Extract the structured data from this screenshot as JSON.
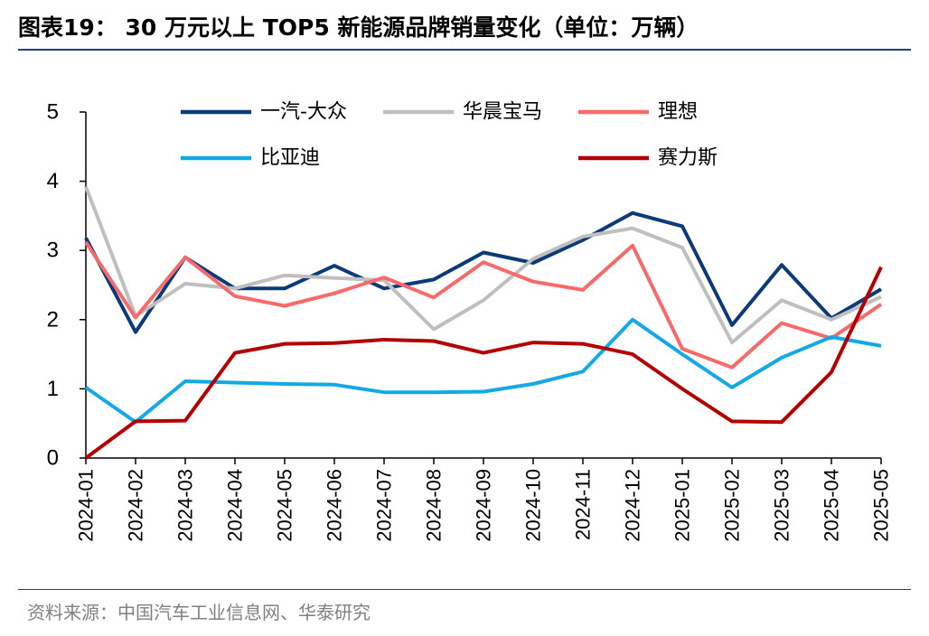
{
  "header": {
    "title": "图表19： 30 万元以上 TOP5 新能源品牌销量变化（单位：万辆）"
  },
  "footer": {
    "source": "资料来源：中国汽车工业信息网、华泰研究"
  },
  "chart_data": {
    "type": "line",
    "title": "30 万元以上 TOP5 新能源品牌销量变化（单位：万辆）",
    "xlabel": "",
    "ylabel": "",
    "ylim": [
      0,
      5
    ],
    "yticks": [
      "0",
      "1",
      "2",
      "3",
      "4",
      "5"
    ],
    "grid": false,
    "legend_position": "top",
    "categories": [
      "2024-01",
      "2024-02",
      "2024-03",
      "2024-04",
      "2024-05",
      "2024-06",
      "2024-07",
      "2024-08",
      "2024-09",
      "2024-10",
      "2024-11",
      "2024-12",
      "2025-01",
      "2025-02",
      "2025-03",
      "2025-04",
      "2025-05"
    ],
    "series": [
      {
        "name": "一汽-大众",
        "color": "#0B3A7A",
        "values": [
          3.18,
          1.82,
          2.9,
          2.45,
          2.45,
          2.78,
          2.45,
          2.58,
          2.97,
          2.82,
          3.15,
          3.54,
          3.35,
          1.92,
          2.79,
          2.02,
          2.44
        ]
      },
      {
        "name": "华晨宝马",
        "color": "#BFBFBF",
        "values": [
          3.92,
          2.05,
          2.52,
          2.45,
          2.64,
          2.6,
          2.57,
          1.86,
          2.28,
          2.88,
          3.2,
          3.32,
          3.04,
          1.67,
          2.28,
          2.0,
          2.33
        ]
      },
      {
        "name": "理想",
        "color": "#F86A6A",
        "values": [
          3.12,
          2.03,
          2.9,
          2.34,
          2.2,
          2.38,
          2.61,
          2.32,
          2.83,
          2.55,
          2.43,
          3.07,
          1.58,
          1.31,
          1.95,
          1.73,
          2.22
        ]
      },
      {
        "name": "比亚迪",
        "color": "#14A9E6",
        "values": [
          1.02,
          0.52,
          1.11,
          1.09,
          1.07,
          1.06,
          0.95,
          0.95,
          0.96,
          1.07,
          1.25,
          2.0,
          1.5,
          1.02,
          1.45,
          1.75,
          1.62
        ]
      },
      {
        "name": "赛力斯",
        "color": "#B30000",
        "values": [
          0.0,
          0.53,
          0.54,
          1.52,
          1.65,
          1.66,
          1.71,
          1.69,
          1.52,
          1.67,
          1.65,
          1.5,
          1.0,
          0.53,
          0.52,
          1.24,
          2.76
        ]
      }
    ]
  }
}
